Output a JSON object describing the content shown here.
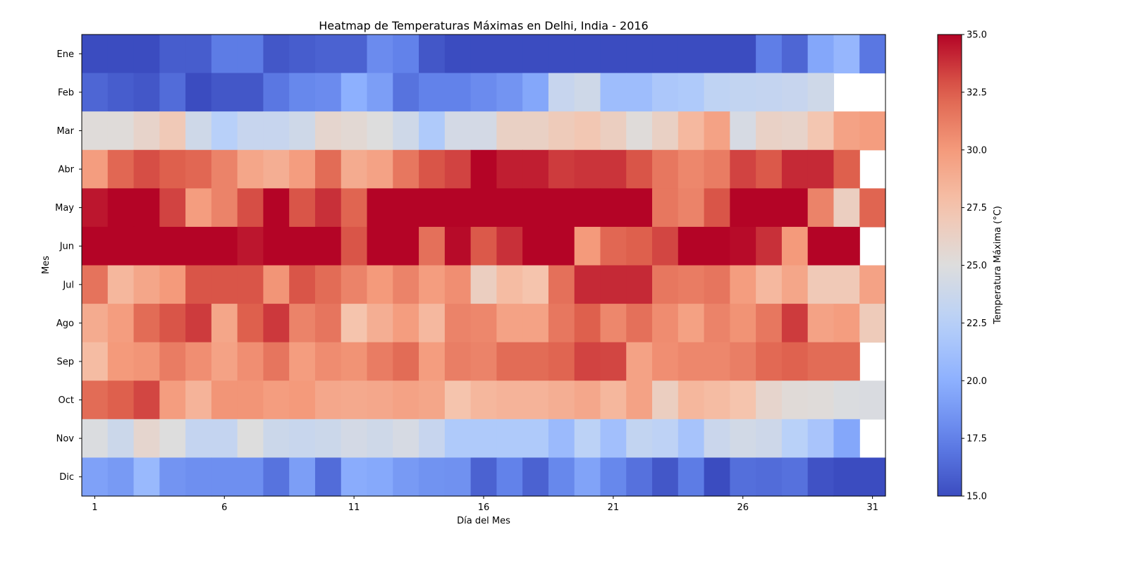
{
  "chart_data": {
    "type": "heatmap",
    "title": "Heatmap de Temperaturas Máximas en Delhi, India - 2016",
    "xlabel": "Día del Mes",
    "ylabel": "Mes",
    "x_ticks": [
      1,
      6,
      11,
      16,
      21,
      26,
      31
    ],
    "x_range": [
      1,
      31
    ],
    "rows": [
      "Ene",
      "Feb",
      "Mar",
      "Abr",
      "May",
      "Jun",
      "Jul",
      "Ago",
      "Sep",
      "Oct",
      "Nov",
      "Dic"
    ],
    "colormap": "coolwarm",
    "colorbar": {
      "label": "Temperatura Máxima (°C)",
      "vmin": 15.0,
      "vmax": 35.0,
      "ticks": [
        "15.0",
        "17.5",
        "20.0",
        "22.5",
        "25.0",
        "27.5",
        "30.0",
        "32.5",
        "35.0"
      ]
    },
    "grid": false,
    "values": [
      [
        15,
        15,
        15,
        15.8,
        15.8,
        17.2,
        17.2,
        15.5,
        15.8,
        16,
        16,
        18,
        17.5,
        15.5,
        15,
        15,
        15,
        15,
        15,
        15,
        15,
        15,
        15,
        15,
        15,
        15,
        17.3,
        16.2,
        19.5,
        20.5,
        17
      ],
      [
        16.2,
        15.8,
        15.5,
        16.5,
        15,
        15.5,
        15.5,
        17,
        17.8,
        18,
        20,
        19,
        16.8,
        17.5,
        17.5,
        18,
        18.5,
        19.5,
        23.5,
        24,
        21,
        21,
        21.8,
        22,
        23,
        23.2,
        23.3,
        23.5,
        24,
        null,
        null
      ],
      [
        25.2,
        25.2,
        26,
        27,
        24,
        22.5,
        23.5,
        23.5,
        24,
        25.8,
        25.5,
        25,
        24,
        22,
        24.3,
        24.3,
        26.3,
        26.3,
        26.8,
        27.2,
        26.5,
        25.2,
        26.3,
        28.2,
        29.5,
        24.5,
        26.2,
        26,
        27.3,
        29.5,
        29.8
      ],
      [
        29.8,
        32.2,
        33,
        32.5,
        32.2,
        31,
        29.3,
        28.8,
        29.8,
        32,
        29,
        29.5,
        31.5,
        32.8,
        33.3,
        35,
        34.3,
        34.3,
        33.5,
        33.7,
        33.7,
        32.8,
        31.5,
        30.8,
        31.3,
        33.3,
        32.7,
        34,
        34,
        32.5,
        null
      ],
      [
        34.5,
        35,
        35,
        33.3,
        29.8,
        31,
        33,
        35,
        32.8,
        33.8,
        32.3,
        35,
        35,
        35,
        35,
        35,
        35,
        35,
        35,
        35,
        35,
        35,
        31.5,
        31,
        32.8,
        35,
        35,
        35,
        31,
        26.5,
        32.3
      ],
      [
        35,
        35,
        35,
        35,
        35,
        35,
        34.5,
        35,
        35,
        35,
        32.8,
        35,
        35,
        31.8,
        34.8,
        32.7,
        33.8,
        35,
        35,
        30,
        32.2,
        32.5,
        33.2,
        35,
        35,
        34.8,
        33.8,
        30,
        35,
        35,
        null
      ],
      [
        31.7,
        28.3,
        29.3,
        30,
        32.8,
        32.8,
        32.8,
        30.2,
        32.8,
        32,
        31,
        30,
        31,
        29.8,
        30.5,
        26.5,
        28,
        27.5,
        31.8,
        34,
        34,
        34,
        31.5,
        31.3,
        31.6,
        29.8,
        28.2,
        29.3,
        27,
        27,
        29.5
      ],
      [
        29,
        29.8,
        32,
        32.8,
        33.5,
        29.3,
        32.5,
        33.6,
        31,
        31.6,
        27.5,
        28.8,
        29.8,
        28.2,
        31,
        30.8,
        29.5,
        29.5,
        31.5,
        32.5,
        30.8,
        31.8,
        30.6,
        29.6,
        31,
        30.3,
        31.5,
        33.5,
        29.5,
        29.8,
        26.8
      ],
      [
        28,
        30,
        30.2,
        31.3,
        30.5,
        29.5,
        30.5,
        31.6,
        29.8,
        30.6,
        30.3,
        31.3,
        32,
        29.8,
        31.2,
        31,
        32,
        32,
        32.3,
        33.3,
        33.2,
        29.5,
        30.5,
        30.8,
        30.8,
        31.2,
        32.1,
        32.4,
        32,
        32,
        null
      ],
      [
        32,
        32.5,
        33.2,
        29.8,
        28.5,
        30.2,
        30.2,
        29.8,
        30,
        29.2,
        29.1,
        29.2,
        29.5,
        29.3,
        27.5,
        28.3,
        28.5,
        28.5,
        28.8,
        29.2,
        28.3,
        29.5,
        26.5,
        28.3,
        28,
        27.5,
        25.9,
        25.3,
        25.2,
        24.8,
        24.7
      ],
      [
        24.8,
        23.8,
        25.8,
        25,
        23.3,
        23.3,
        25,
        23.8,
        23.6,
        23.8,
        24.3,
        24,
        24.5,
        23.5,
        22,
        22,
        22,
        22,
        20.8,
        22.8,
        21.2,
        23.2,
        22.9,
        21.5,
        23.7,
        24.2,
        23.9,
        22.6,
        21.6,
        19.5,
        null
      ],
      [
        19.2,
        18.8,
        20.7,
        18.5,
        18.2,
        18.2,
        18.2,
        16.8,
        19,
        16.5,
        19.8,
        19.6,
        18.8,
        18.4,
        18.3,
        16,
        17.5,
        16,
        17.8,
        19.3,
        17.8,
        16.7,
        15.5,
        17.2,
        15,
        16.6,
        16.5,
        16.7,
        15.3,
        15,
        15
      ]
    ]
  }
}
